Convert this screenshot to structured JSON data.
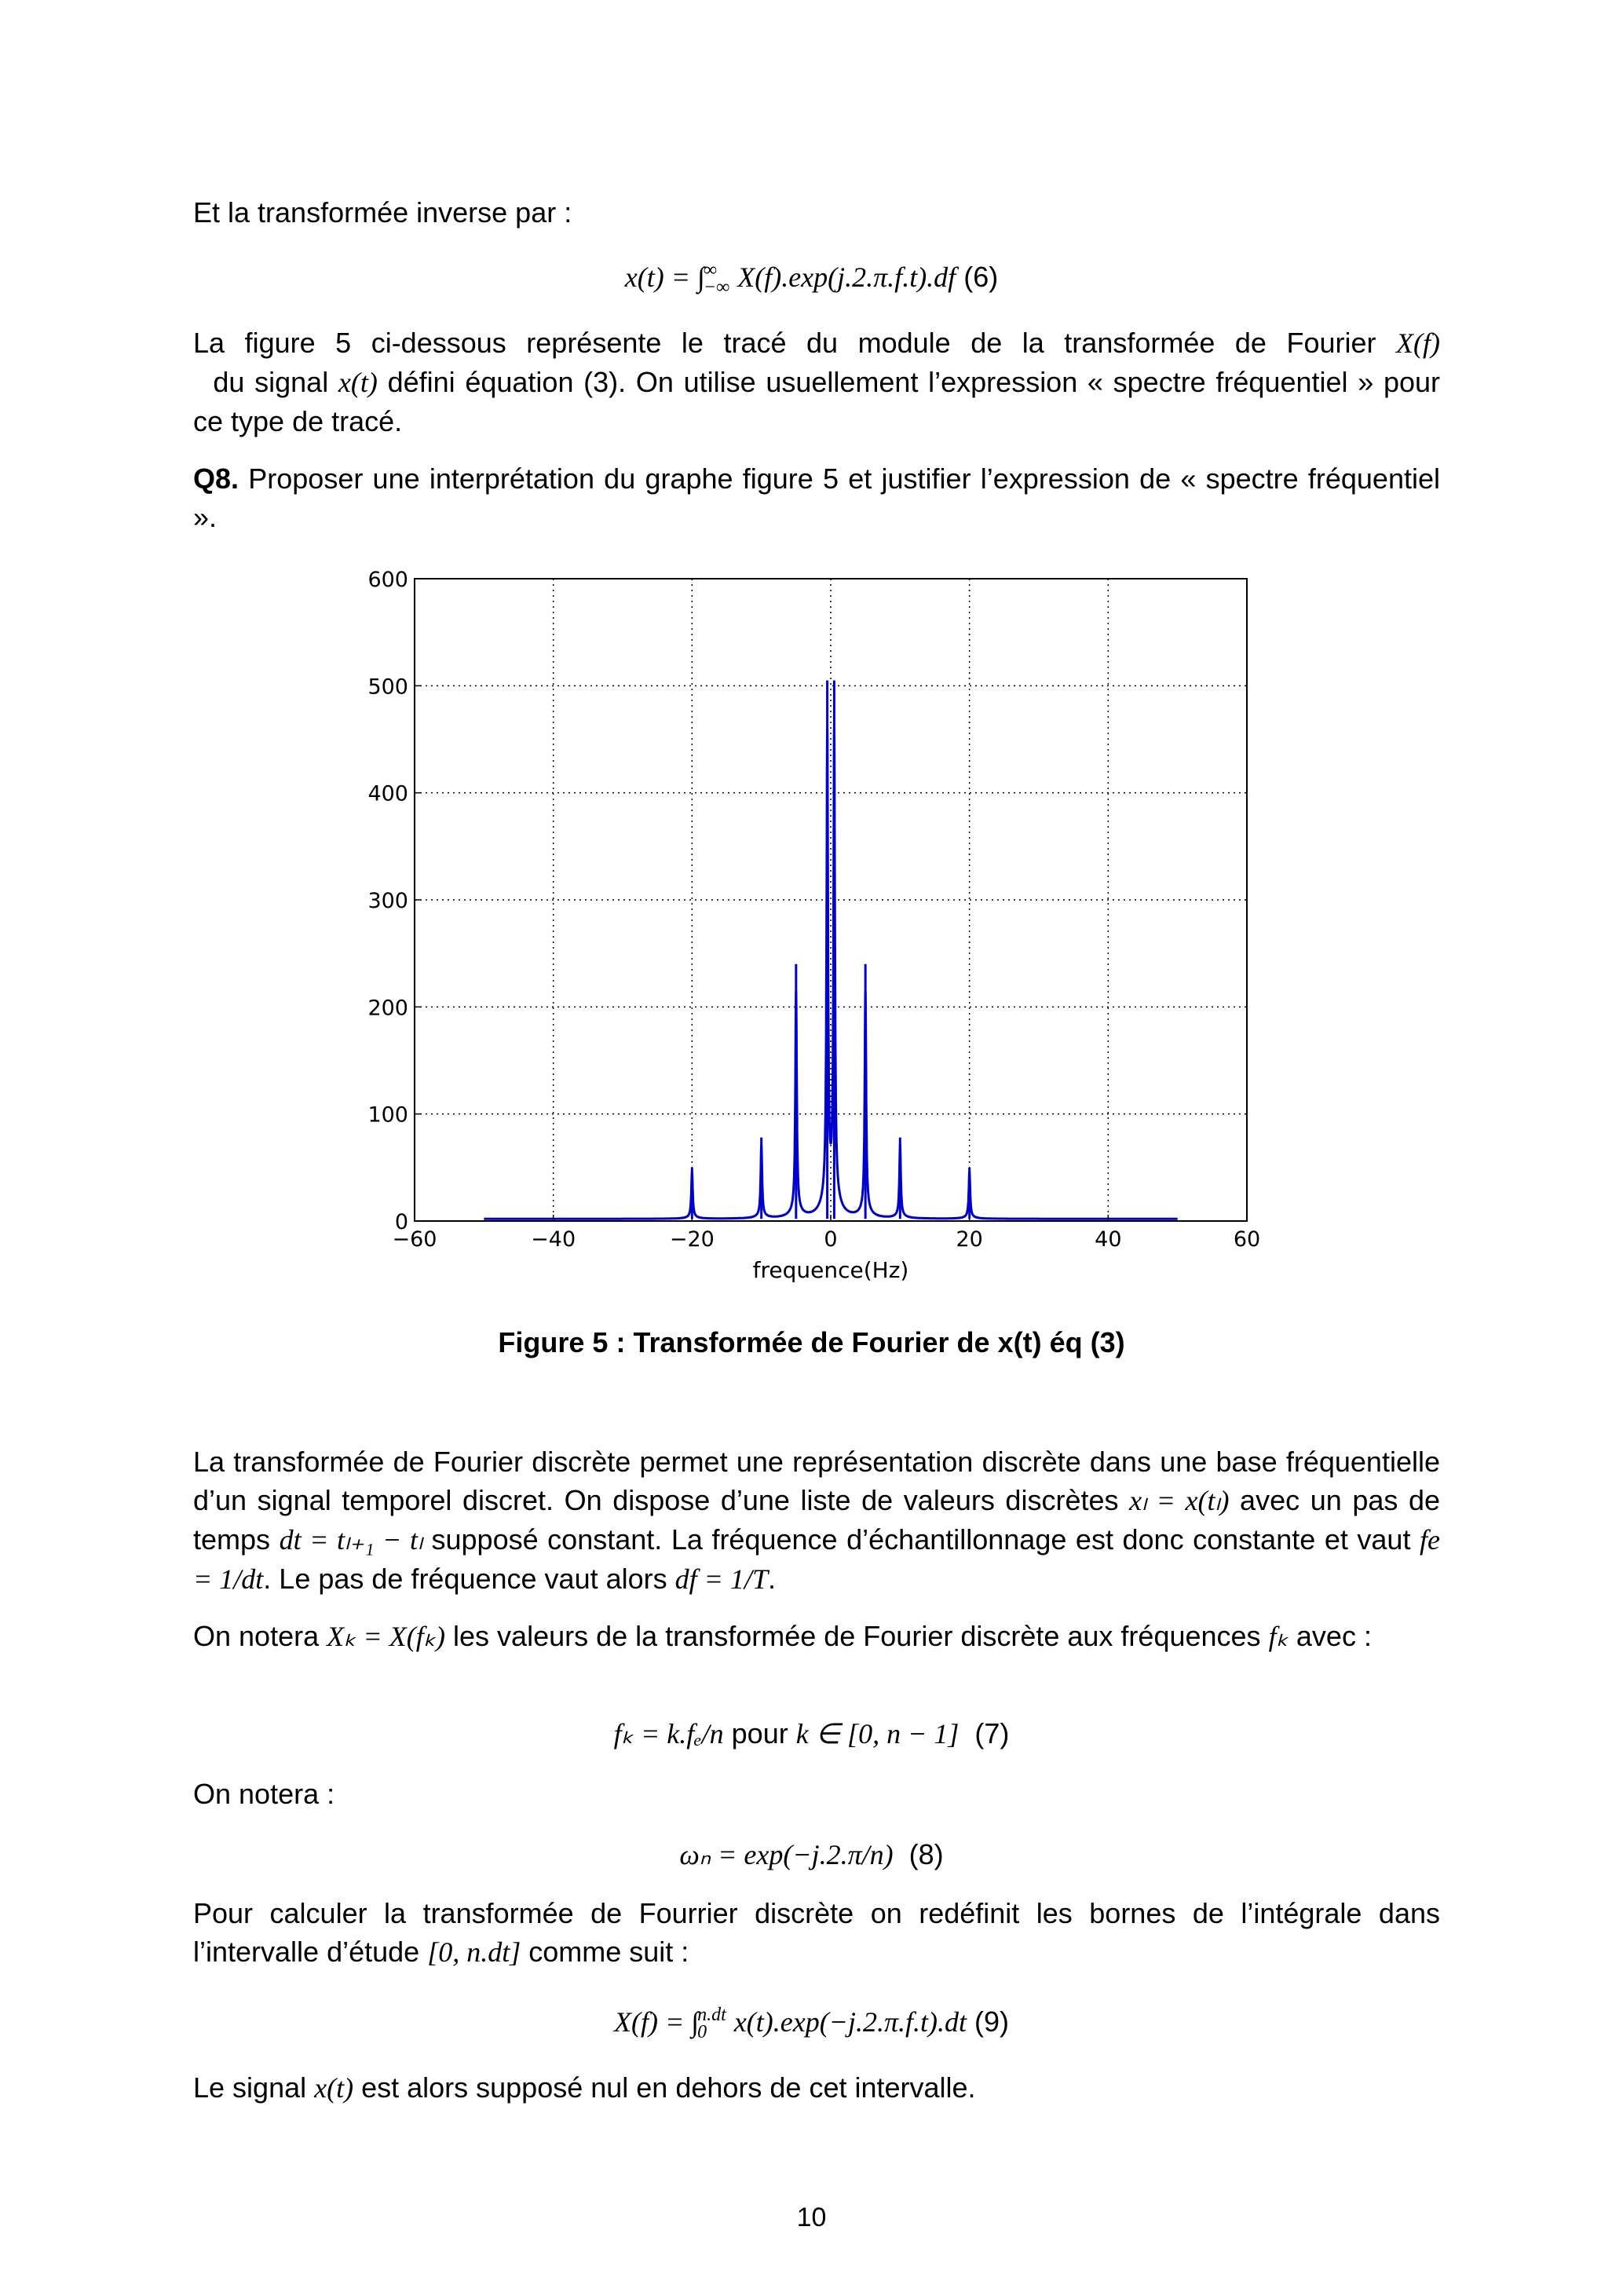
{
  "p1": "Et la transformée inverse par :",
  "eq6": {
    "lhs": "x(t) = ∫",
    "up": "∞",
    "low": "−∞",
    "rhs": "X(f).exp(j.2.π.f.t).df",
    "num": "(6)"
  },
  "p2": {
    "a": "La figure 5 ci-dessous représente le tracé du module de la transformée de Fourier ",
    "m1": "X(f)",
    "b": "  du signal ",
    "m2": "x(t)",
    "c": " défini équation (3). On utilise usuellement l’expression « spectre fréquentiel » pour ce type de tracé."
  },
  "q8": {
    "label": "Q8.",
    "text": " Proposer une interprétation du graphe figure 5 et justifier l’expression de « spectre fréquentiel »."
  },
  "chart_data": {
    "type": "line",
    "title": "",
    "xlabel": "frequence(Hz)",
    "ylabel": "",
    "xlim": [
      -60,
      60
    ],
    "ylim": [
      0,
      600
    ],
    "xticks": [
      "−60",
      "−40",
      "−20",
      "0",
      "20",
      "40",
      "60"
    ],
    "yticks": [
      "0",
      "100",
      "200",
      "300",
      "400",
      "500",
      "600"
    ],
    "grid": true,
    "color": "#0000cc",
    "x_range": [
      -50,
      50
    ],
    "baseline": 2,
    "peaks": [
      {
        "f": -20,
        "amplitude": 50
      },
      {
        "f": -10,
        "amplitude": 78
      },
      {
        "f": -5,
        "amplitude": 240
      },
      {
        "f": -0.5,
        "amplitude": 505
      },
      {
        "f": 0.5,
        "amplitude": 505
      },
      {
        "f": 5,
        "amplitude": 240
      },
      {
        "f": 10,
        "amplitude": 78
      },
      {
        "f": 20,
        "amplitude": 50
      }
    ]
  },
  "caption": "Figure 5 : Transformée de Fourier de x(t) éq (3)",
  "p3": {
    "a": "La transformée de Fourier discrète permet une représentation discrète dans une base fréquentielle d’un signal temporel discret. On dispose d’une liste de valeurs discrètes ",
    "m1": "xₗ = x(tₗ)",
    "b": " avec un pas de temps ",
    "m2": "dt = tₗ₊₁ − tₗ",
    "c": " supposé constant. La fréquence d’échantillonnage est donc constante et vaut ",
    "m3": "fe = 1/dt",
    "d": ". Le pas de fréquence vaut alors ",
    "m4": "df = 1/T",
    "e": "."
  },
  "p4": {
    "a": "On notera ",
    "m1": "Xₖ = X(fₖ)",
    "b": " les valeurs de la transformée de Fourier discrète aux fréquences ",
    "m2": "fₖ",
    "c": " avec :"
  },
  "eq7": {
    "m1": "fₖ = k.fₑ/n",
    "pour": " pour ",
    "m2": "k ∈ [0, n − 1]",
    "num": "  (7)"
  },
  "p5": "On notera :",
  "eq8": {
    "m": "ωₙ = exp(−j.2.π/n)",
    "num": "  (8)"
  },
  "p6": {
    "a": "Pour calculer la transformée de Fourrier discrète on redéfinit les bornes de l’intégrale dans l’intervalle d’étude ",
    "m": "[0, n.dt]",
    "b": " comme suit :"
  },
  "eq9": {
    "lhs": "X(f) = ∫",
    "up": "n.dt",
    "low": "0",
    "rhs": "x(t).exp(−j.2.π.f.t).dt",
    "num": "(9)"
  },
  "p7": {
    "a": "Le signal ",
    "m": "x(t)",
    "b": " est alors supposé nul en dehors de cet intervalle."
  },
  "page_number": "10"
}
